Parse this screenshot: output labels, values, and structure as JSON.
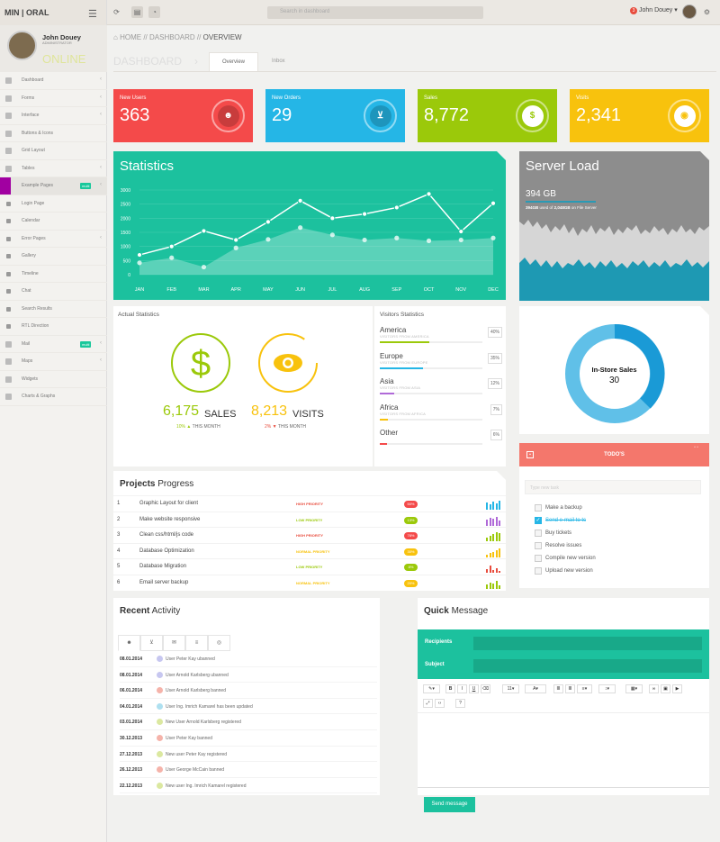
{
  "topbar": {
    "logo": "MIN | ORAL",
    "search_placeholder": "Search in dashboard",
    "notify_count": "3",
    "user": "John Douey"
  },
  "profile": {
    "name": "John Douey",
    "role": "ADMINISTRATOR",
    "status": "ONLINE"
  },
  "sidebar": {
    "items": [
      {
        "label": "Dashboard",
        "chev": "‹",
        "badge": "",
        "cls": "ni"
      },
      {
        "label": "Forms",
        "chev": "‹",
        "badge": "",
        "cls": "ni"
      },
      {
        "label": "Interface",
        "chev": "‹",
        "badge": "",
        "cls": "ni"
      },
      {
        "label": "Buttons & Icons",
        "chev": "",
        "badge": "",
        "cls": "ni"
      },
      {
        "label": "Grid Layout",
        "chev": "",
        "badge": "",
        "cls": "ni"
      },
      {
        "label": "Tables",
        "chev": "‹",
        "badge": "",
        "cls": "ni"
      },
      {
        "label": "Example Pages",
        "chev": "‹",
        "badge": "multi",
        "cls": "ni act"
      },
      {
        "label": "Login Page",
        "chev": "",
        "badge": "",
        "cls": "ni sub"
      },
      {
        "label": "Calendar",
        "chev": "",
        "badge": "",
        "cls": "ni sub"
      },
      {
        "label": "Error Pages",
        "chev": "‹",
        "badge": "",
        "cls": "ni sub"
      },
      {
        "label": "Gallery",
        "chev": "",
        "badge": "",
        "cls": "ni sub"
      },
      {
        "label": "Timeline",
        "chev": "",
        "badge": "",
        "cls": "ni sub"
      },
      {
        "label": "Chat",
        "chev": "",
        "badge": "",
        "cls": "ni sub"
      },
      {
        "label": "Search Results",
        "chev": "",
        "badge": "",
        "cls": "ni sub"
      },
      {
        "label": "RTL Direction",
        "chev": "",
        "badge": "",
        "cls": "ni sub"
      },
      {
        "label": "Mail",
        "chev": "‹",
        "badge": "multi",
        "cls": "ni"
      },
      {
        "label": "Maps",
        "chev": "‹",
        "badge": "",
        "cls": "ni"
      },
      {
        "label": "Widgets",
        "chev": "",
        "badge": "",
        "cls": "ni"
      },
      {
        "label": "Charts & Graphs",
        "chev": "",
        "badge": "",
        "cls": "ni"
      }
    ]
  },
  "breadcrumb": {
    "home": "HOME",
    "sep1": "//",
    "dashboard": "DASHBOARD",
    "sep2": "//",
    "overview": "OVERVIEW"
  },
  "page": {
    "title": "DASHBOARD",
    "tab_overview": "Overview",
    "tab_inbox": "Inbox"
  },
  "kpis": [
    {
      "label": "New Users",
      "value": "363",
      "color": "#f44a4a",
      "icon": "user-icon"
    },
    {
      "label": "New Orders",
      "value": "29",
      "color": "#25b6e6",
      "icon": "cart-icon"
    },
    {
      "label": "Sales",
      "value": "8,772",
      "color": "#9bc90a",
      "icon": "dollar-icon"
    },
    {
      "label": "Visits",
      "value": "2,341",
      "color": "#f8c20d",
      "icon": "eye-icon"
    }
  ],
  "statistics": {
    "title": "Statistics"
  },
  "chart_data": {
    "type": "line",
    "categories": [
      "JAN",
      "FEB",
      "MAR",
      "APR",
      "MAY",
      "JUN",
      "JUL",
      "AUG",
      "SEP",
      "OCT",
      "NOV",
      "DEC"
    ],
    "series": [
      {
        "name": "",
        "values": [
          700,
          1000,
          1550,
          1230,
          1870,
          2620,
          2000,
          2150,
          2380,
          2860,
          1530,
          2530
        ]
      },
      {
        "name": "",
        "values": [
          420,
          600,
          270,
          950,
          1250,
          1670,
          1410,
          1230,
          1300,
          1200,
          1230,
          1300
        ]
      }
    ],
    "yticks": [
      "3000",
      "2500",
      "2000",
      "1500",
      "1000",
      "500",
      "0"
    ],
    "ylim": [
      0,
      3000
    ]
  },
  "server": {
    "title": "Server Load",
    "value": "394 GB",
    "used": "394GB",
    "sub_mid": "used of",
    "total": "2,048GB",
    "sub_end": "on File Server"
  },
  "actual": {
    "title": "Actual Statistics",
    "sales_num": "6,175",
    "sales_word": "SALES",
    "sales_pct": "10%",
    "sales_sub": "THIS MONTH",
    "visits_num": "8,213",
    "visits_word": "VISITS",
    "visits_pct": "2%",
    "visits_sub": "THIS MONTH"
  },
  "visitors": {
    "title": "Visitors Statistics",
    "rows": [
      {
        "name": "America",
        "sub": "VISITORS FROM AMERICA",
        "pct": "40%",
        "fill": 0.48,
        "color": "#9bc90a"
      },
      {
        "name": "Europe",
        "sub": "VISITORS FROM EUROPE",
        "pct": "35%",
        "fill": 0.42,
        "color": "#25b6e6"
      },
      {
        "name": "Asia",
        "sub": "VISITORS FROM ASIA",
        "pct": "12%",
        "fill": 0.14,
        "color": "#b06ad8"
      },
      {
        "name": "Africa",
        "sub": "VISITORS FROM AFRICA",
        "pct": "7%",
        "fill": 0.08,
        "color": "#f8c20d"
      },
      {
        "name": "Other",
        "sub": "",
        "pct": "6%",
        "fill": 0.07,
        "color": "#f44a4a"
      }
    ]
  },
  "instore": {
    "label": "In-Store Sales",
    "value": "30"
  },
  "todo": {
    "title": "TODO'S",
    "placeholder": "Type new task",
    "items": [
      {
        "text": "Make a backup",
        "done": false
      },
      {
        "text": "Send e-mail to tc",
        "done": true
      },
      {
        "text": "Buy tickets",
        "done": false
      },
      {
        "text": "Resolve issues",
        "done": false
      },
      {
        "text": "Compile new version",
        "done": false
      },
      {
        "text": "Upload new version",
        "done": false
      }
    ]
  },
  "projects": {
    "title_b": "Projects",
    "title_r": "Progress",
    "rows": [
      {
        "n": "1",
        "task": "Graphic Layout for client",
        "pri": "HIGH PRIORITY",
        "pc": "#e84c3d",
        "pct": "50%",
        "pillc": "#f44a4a",
        "sc": "#25b6e6"
      },
      {
        "n": "2",
        "task": "Make website responsive",
        "pri": "LOW PRIORITY",
        "pc": "#9bc90a",
        "pct": "13%",
        "pillc": "#9bc90a",
        "sc": "#b06ad8"
      },
      {
        "n": "3",
        "task": "Clean css/html/js code",
        "pri": "HIGH PRIORITY",
        "pc": "#e84c3d",
        "pct": "76%",
        "pillc": "#f44a4a",
        "sc": "#9bc90a"
      },
      {
        "n": "4",
        "task": "Database Optimization",
        "pri": "NORMAL PRIORITY",
        "pc": "#f8c20d",
        "pct": "30%",
        "pillc": "#f8c20d",
        "sc": "#f8c20d"
      },
      {
        "n": "5",
        "task": "Database Migration",
        "pri": "LOW PRIORITY",
        "pc": "#9bc90a",
        "pct": "8%",
        "pillc": "#9bc90a",
        "sc": "#e84c3d"
      },
      {
        "n": "6",
        "task": "Email server backup",
        "pri": "NORMAL PRIORITY",
        "pc": "#f8c20d",
        "pct": "20%",
        "pillc": "#f8c20d",
        "sc": "#9bc90a"
      }
    ]
  },
  "recent": {
    "title_b": "Recent",
    "title_r": "Activity",
    "rows": [
      {
        "d": "08.01.2014",
        "m": "User Peter Kay ubanned",
        "c": "#c7c7f0"
      },
      {
        "d": "08.01.2014",
        "m": "User Arnold Karlsberg ubanned",
        "c": "#c7c7f0"
      },
      {
        "d": "06.01.2014",
        "m": "User Arnold Karlsberg banned",
        "c": "#f5b3aa"
      },
      {
        "d": "04.01.2014",
        "m": "User Ing. Imrich Kamarel has been updated",
        "c": "#aee0f0"
      },
      {
        "d": "03.01.2014",
        "m": "New User Arnold Karlsberg registered",
        "c": "#dbe8a0"
      },
      {
        "d": "30.12.2013",
        "m": "User Peter Kay banned",
        "c": "#f5b3aa"
      },
      {
        "d": "27.12.2013",
        "m": "New user Peter Kay registered",
        "c": "#dbe8a0"
      },
      {
        "d": "26.12.2013",
        "m": "User George McCain banned",
        "c": "#f5b3aa"
      },
      {
        "d": "22.12.2013",
        "m": "New user Ing. Imrich Kamarel registered",
        "c": "#dbe8a0"
      }
    ]
  },
  "quick": {
    "title_b": "Quick",
    "title_r": "Message",
    "recipients": "Recipients",
    "subject": "Subject",
    "send": "Send message"
  }
}
